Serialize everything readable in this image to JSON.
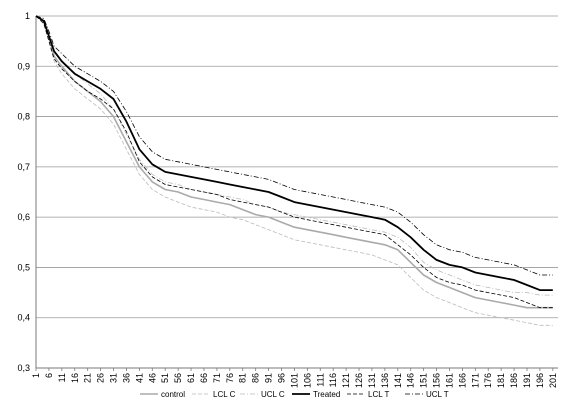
{
  "chart_data": {
    "type": "line",
    "title": "",
    "xlabel": "",
    "ylabel": "",
    "ylim": [
      0.3,
      1.0
    ],
    "yticks": [
      "0,3",
      "0,4",
      "0,5",
      "0,6",
      "0,7",
      "0,8",
      "0,9",
      "1"
    ],
    "xlim": [
      1,
      203
    ],
    "xtick_labels": [
      "1",
      "6",
      "11",
      "16",
      "21",
      "26",
      "31",
      "36",
      "41",
      "46",
      "51",
      "56",
      "61",
      "66",
      "71",
      "76",
      "81",
      "86",
      "91",
      "96",
      "101",
      "106",
      "111",
      "116",
      "121",
      "126",
      "131",
      "136",
      "141",
      "146",
      "151",
      "156",
      "161",
      "166",
      "171",
      "176",
      "181",
      "186",
      "191",
      "196",
      "201"
    ],
    "grid": "horizontal",
    "legend_position": "bottom",
    "series": [
      {
        "name": "control",
        "color": "#aaaaaa",
        "style": "solid",
        "width": 1.6,
        "x": [
          1,
          4,
          6,
          8,
          11,
          16,
          21,
          26,
          31,
          36,
          41,
          46,
          51,
          56,
          61,
          66,
          71,
          76,
          81,
          86,
          91,
          96,
          101,
          106,
          111,
          116,
          121,
          126,
          131,
          136,
          141,
          146,
          151,
          156,
          161,
          166,
          171,
          176,
          181,
          186,
          191,
          196,
          201
        ],
        "y": [
          1.0,
          0.99,
          0.96,
          0.92,
          0.9,
          0.87,
          0.85,
          0.83,
          0.8,
          0.75,
          0.7,
          0.67,
          0.655,
          0.65,
          0.64,
          0.635,
          0.63,
          0.625,
          0.615,
          0.605,
          0.6,
          0.59,
          0.58,
          0.575,
          0.57,
          0.565,
          0.56,
          0.555,
          0.55,
          0.545,
          0.535,
          0.51,
          0.485,
          0.47,
          0.46,
          0.45,
          0.44,
          0.435,
          0.43,
          0.425,
          0.42,
          0.42,
          0.42
        ]
      },
      {
        "name": "LCL C",
        "color": "#bbbbbb",
        "style": "dash",
        "width": 0.8,
        "x": [
          1,
          4,
          6,
          8,
          11,
          16,
          21,
          26,
          31,
          36,
          41,
          46,
          51,
          56,
          61,
          66,
          71,
          76,
          81,
          86,
          91,
          96,
          101,
          106,
          111,
          116,
          121,
          126,
          131,
          136,
          141,
          146,
          151,
          156,
          161,
          166,
          171,
          176,
          181,
          186,
          191,
          196,
          201
        ],
        "y": [
          1.0,
          0.985,
          0.95,
          0.91,
          0.885,
          0.855,
          0.835,
          0.815,
          0.785,
          0.735,
          0.685,
          0.655,
          0.64,
          0.63,
          0.62,
          0.615,
          0.61,
          0.6,
          0.595,
          0.585,
          0.575,
          0.565,
          0.555,
          0.55,
          0.545,
          0.54,
          0.535,
          0.53,
          0.525,
          0.515,
          0.505,
          0.48,
          0.455,
          0.44,
          0.43,
          0.42,
          0.41,
          0.405,
          0.4,
          0.395,
          0.39,
          0.385,
          0.385
        ]
      },
      {
        "name": "UCL C",
        "color": "#bbbbbb",
        "style": "dashdot",
        "width": 0.8,
        "x": [
          1,
          4,
          6,
          8,
          11,
          16,
          21,
          26,
          31,
          36,
          41,
          46,
          51,
          56,
          61,
          66,
          71,
          76,
          81,
          86,
          91,
          96,
          101,
          106,
          111,
          116,
          121,
          126,
          131,
          136,
          141,
          146,
          151,
          156,
          161,
          166,
          171,
          176,
          181,
          186,
          191,
          196,
          201
        ],
        "y": [
          1.0,
          0.995,
          0.965,
          0.93,
          0.91,
          0.885,
          0.865,
          0.845,
          0.815,
          0.765,
          0.715,
          0.685,
          0.67,
          0.665,
          0.655,
          0.65,
          0.645,
          0.64,
          0.635,
          0.625,
          0.62,
          0.61,
          0.605,
          0.6,
          0.595,
          0.59,
          0.585,
          0.58,
          0.575,
          0.57,
          0.56,
          0.54,
          0.51,
          0.495,
          0.485,
          0.475,
          0.465,
          0.46,
          0.455,
          0.45,
          0.45,
          0.445,
          0.445
        ]
      },
      {
        "name": "Treated",
        "color": "#000000",
        "style": "solid",
        "width": 1.8,
        "x": [
          1,
          4,
          6,
          8,
          11,
          16,
          21,
          26,
          31,
          36,
          41,
          46,
          51,
          56,
          61,
          66,
          71,
          76,
          81,
          86,
          91,
          96,
          101,
          106,
          111,
          116,
          121,
          126,
          131,
          136,
          141,
          146,
          151,
          156,
          161,
          166,
          171,
          176,
          181,
          186,
          191,
          196,
          201
        ],
        "y": [
          1.0,
          0.99,
          0.96,
          0.93,
          0.91,
          0.885,
          0.87,
          0.855,
          0.835,
          0.79,
          0.735,
          0.705,
          0.69,
          0.685,
          0.68,
          0.675,
          0.67,
          0.665,
          0.66,
          0.655,
          0.65,
          0.64,
          0.63,
          0.625,
          0.62,
          0.615,
          0.61,
          0.605,
          0.6,
          0.595,
          0.58,
          0.56,
          0.535,
          0.515,
          0.505,
          0.5,
          0.49,
          0.485,
          0.48,
          0.475,
          0.465,
          0.455,
          0.455
        ]
      },
      {
        "name": "LCL T",
        "color": "#000000",
        "style": "dash",
        "width": 0.8,
        "x": [
          1,
          4,
          6,
          8,
          11,
          16,
          21,
          26,
          31,
          36,
          41,
          46,
          51,
          56,
          61,
          66,
          71,
          76,
          81,
          86,
          91,
          96,
          101,
          106,
          111,
          116,
          121,
          126,
          131,
          136,
          141,
          146,
          151,
          156,
          161,
          166,
          171,
          176,
          181,
          186,
          191,
          196,
          201
        ],
        "y": [
          1.0,
          0.985,
          0.95,
          0.915,
          0.895,
          0.87,
          0.85,
          0.835,
          0.815,
          0.77,
          0.71,
          0.68,
          0.665,
          0.66,
          0.655,
          0.65,
          0.645,
          0.635,
          0.63,
          0.625,
          0.62,
          0.61,
          0.6,
          0.595,
          0.59,
          0.585,
          0.58,
          0.575,
          0.57,
          0.565,
          0.545,
          0.525,
          0.5,
          0.48,
          0.47,
          0.465,
          0.455,
          0.45,
          0.445,
          0.44,
          0.43,
          0.42,
          0.42
        ]
      },
      {
        "name": "UCL T",
        "color": "#000000",
        "style": "dashdot",
        "width": 0.8,
        "x": [
          1,
          4,
          6,
          8,
          11,
          16,
          21,
          26,
          31,
          36,
          41,
          46,
          51,
          56,
          61,
          66,
          71,
          76,
          81,
          86,
          91,
          96,
          101,
          106,
          111,
          116,
          121,
          126,
          131,
          136,
          141,
          146,
          151,
          156,
          161,
          166,
          171,
          176,
          181,
          186,
          191,
          196,
          201
        ],
        "y": [
          1.0,
          0.995,
          0.97,
          0.94,
          0.925,
          0.9,
          0.885,
          0.87,
          0.85,
          0.81,
          0.76,
          0.73,
          0.715,
          0.71,
          0.705,
          0.7,
          0.695,
          0.69,
          0.685,
          0.68,
          0.675,
          0.665,
          0.655,
          0.65,
          0.645,
          0.64,
          0.635,
          0.63,
          0.625,
          0.62,
          0.61,
          0.59,
          0.565,
          0.545,
          0.535,
          0.53,
          0.52,
          0.515,
          0.51,
          0.505,
          0.495,
          0.485,
          0.485
        ]
      }
    ]
  }
}
